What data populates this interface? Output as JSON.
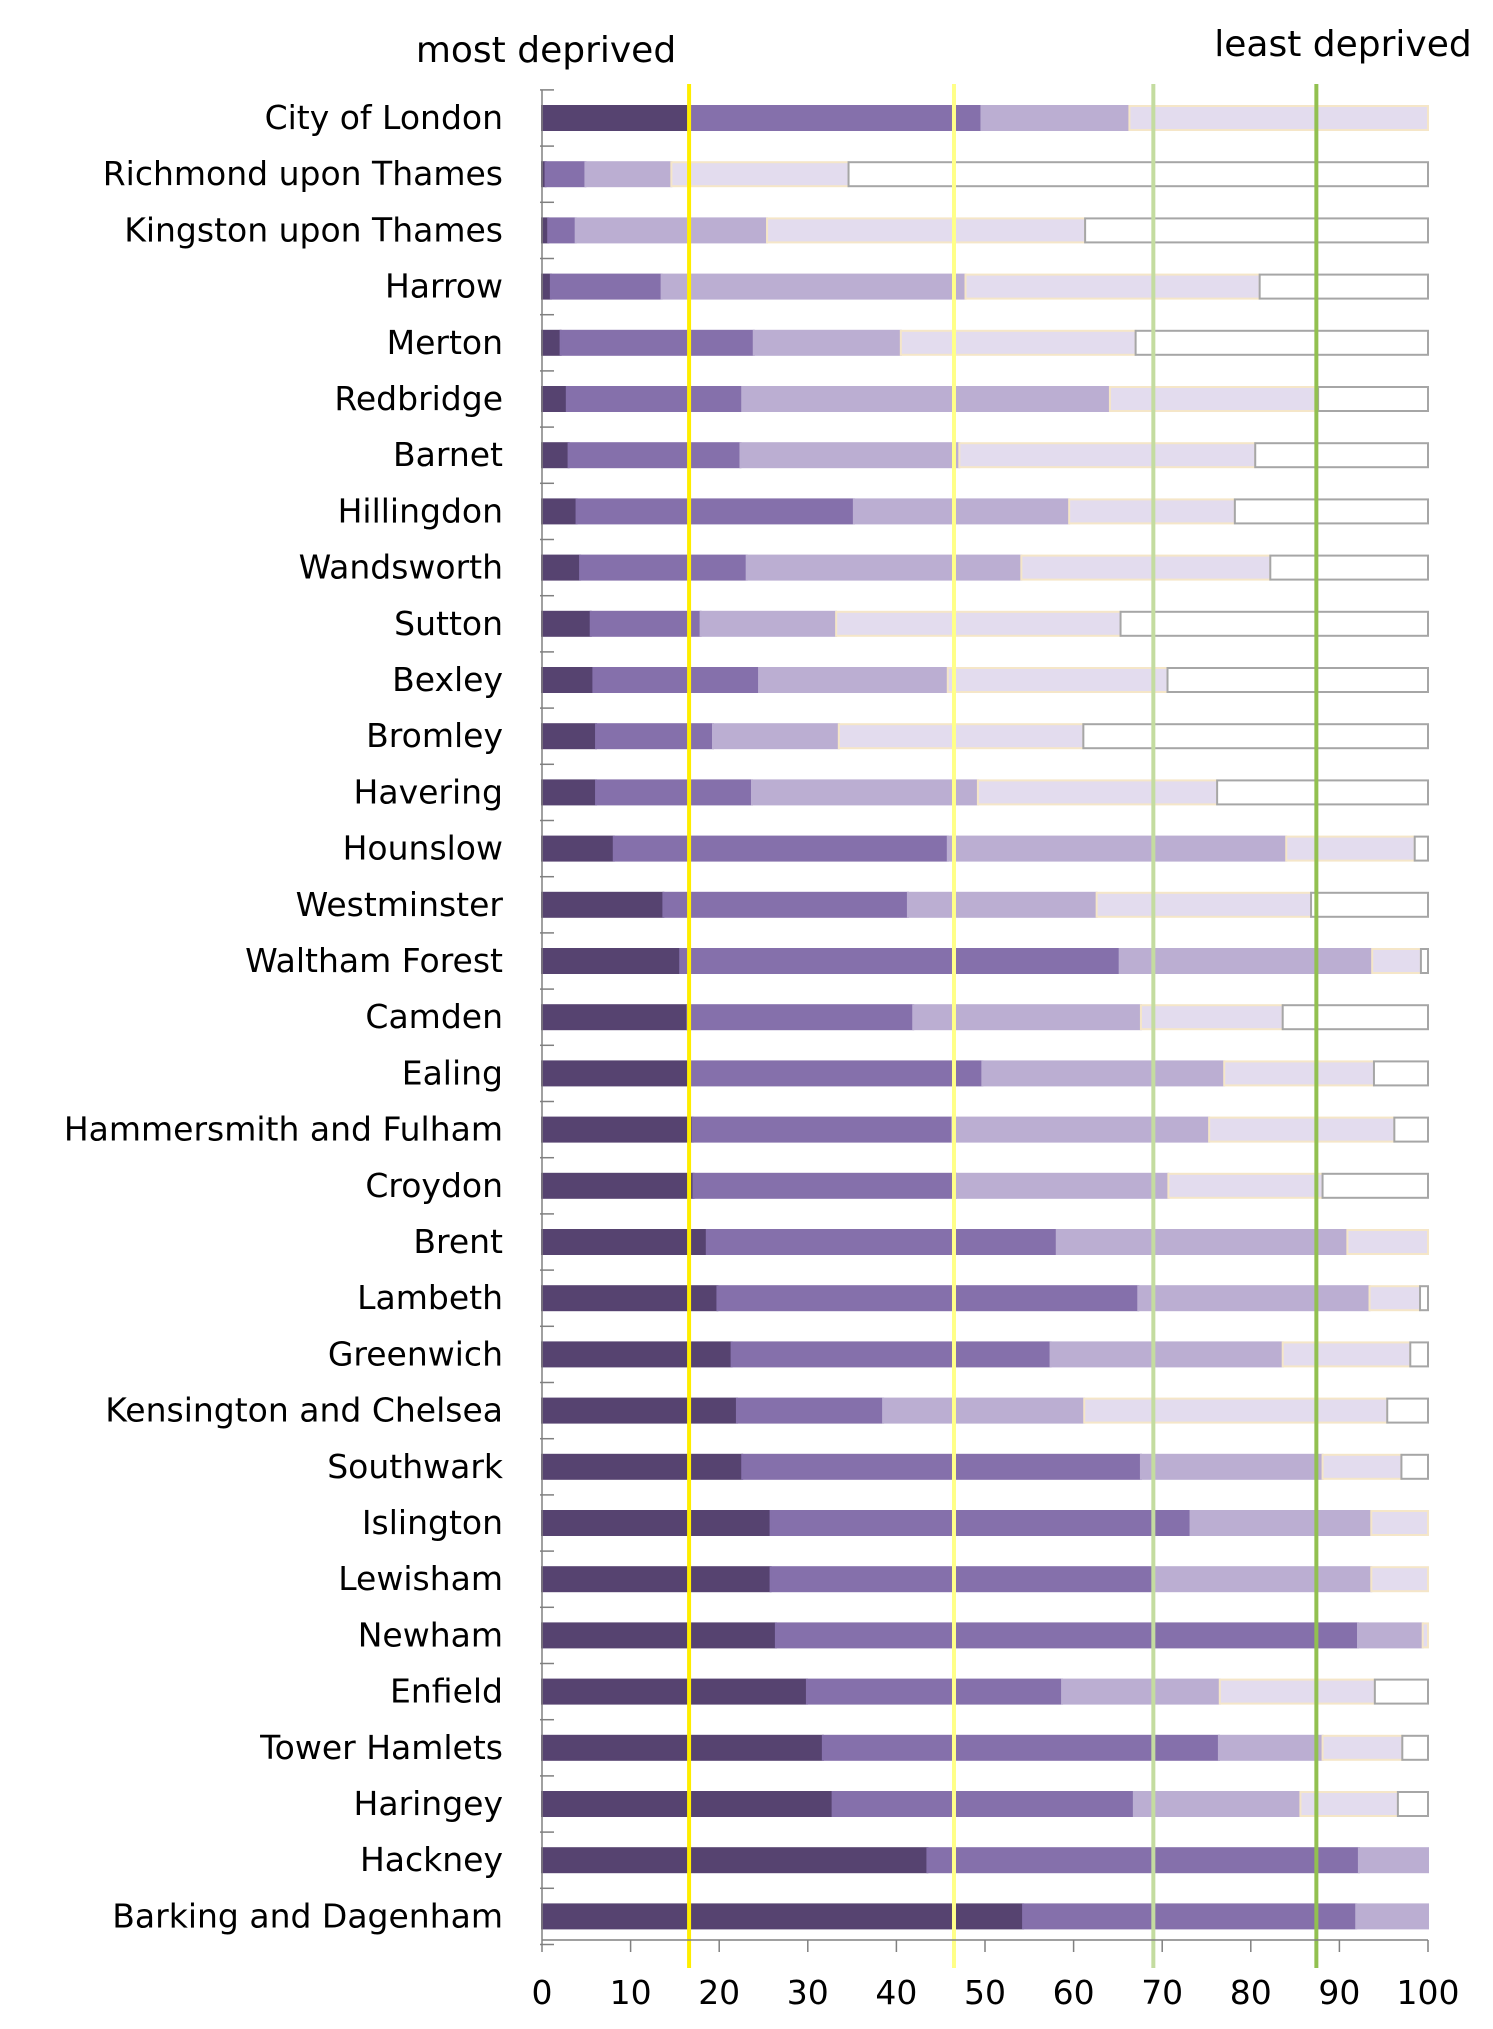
{
  "chart_data": {
    "type": "bar",
    "orientation": "horizontal",
    "stacked": true,
    "header_left": "most deprived",
    "header_right": "least deprived",
    "xlim": [
      0,
      100
    ],
    "xticks": [
      "0",
      "10",
      "20",
      "30",
      "40",
      "50",
      "60",
      "70",
      "80",
      "90",
      "100"
    ],
    "grid": false,
    "categories": [
      "City of London",
      "Richmond upon Thames",
      "Kingston upon Thames",
      "Harrow",
      "Merton",
      "Redbridge",
      "Barnet",
      "Hillingdon",
      "Wandsworth",
      "Sutton",
      "Bexley",
      "Bromley",
      "Havering",
      "Hounslow",
      "Westminster",
      "Waltham Forest",
      "Camden",
      "Ealing",
      "Hammersmith and Fulham",
      "Croydon",
      "Brent",
      "Lambeth",
      "Greenwich",
      "Kensington and Chelsea",
      "Southwark",
      "Islington",
      "Lewisham",
      "Newham",
      "Enfield",
      "Tower Hamlets",
      "Haringey",
      "Hackney",
      "Barking and Dagenham"
    ],
    "segment_colors": [
      "#564370",
      "#8570ab",
      "#bbaed2",
      "#e3dcee",
      "#ffffff"
    ],
    "segment_strokes": [
      "#564370",
      "#8570ab",
      "#bbaed2",
      "#f5e6c8",
      "#a6a6a6"
    ],
    "cumulative": [
      [
        0,
        16.5,
        49.6,
        66.3,
        100
      ],
      [
        0,
        0.4,
        4.9,
        14.6,
        34.6,
        100
      ],
      [
        0,
        0.7,
        3.8,
        25.4,
        61.3,
        100
      ],
      [
        0,
        1.0,
        13.5,
        47.8,
        81.0,
        100
      ],
      [
        0,
        2.1,
        23.9,
        40.5,
        67.0,
        100
      ],
      [
        0,
        2.8,
        22.6,
        64.1,
        87.6,
        100
      ],
      [
        0,
        3.0,
        22.4,
        47.1,
        80.5,
        100
      ],
      [
        0,
        3.9,
        35.2,
        59.5,
        78.2,
        100
      ],
      [
        0,
        4.3,
        23.1,
        54.1,
        82.2,
        100
      ],
      [
        0,
        5.5,
        17.9,
        33.2,
        65.3,
        100
      ],
      [
        0,
        5.8,
        24.5,
        45.8,
        70.6,
        100
      ],
      [
        0,
        6.1,
        19.3,
        33.5,
        61.1,
        100
      ],
      [
        0,
        6.1,
        23.7,
        49.2,
        76.2,
        100
      ],
      [
        0,
        8.1,
        45.8,
        84.0,
        98.5,
        100
      ],
      [
        0,
        13.7,
        41.3,
        62.6,
        86.8,
        100
      ],
      [
        0,
        15.6,
        65.2,
        93.7,
        99.2,
        100
      ],
      [
        0,
        16.4,
        41.9,
        67.6,
        83.6,
        100
      ],
      [
        0,
        16.6,
        49.7,
        77.0,
        93.9,
        100
      ],
      [
        0,
        17.0,
        46.3,
        75.3,
        96.2,
        100
      ],
      [
        0,
        17.1,
        46.7,
        70.7,
        88.1,
        100
      ],
      [
        0,
        18.6,
        58.1,
        90.9,
        100
      ],
      [
        0,
        19.8,
        67.3,
        93.4,
        99.1,
        100
      ],
      [
        0,
        21.4,
        57.4,
        83.6,
        98.0,
        100
      ],
      [
        0,
        22.0,
        38.5,
        61.2,
        95.4,
        100
      ],
      [
        0,
        22.6,
        67.6,
        88.1,
        97.0,
        100
      ],
      [
        0,
        25.8,
        73.2,
        93.6,
        100
      ],
      [
        0,
        25.8,
        69.1,
        93.6,
        100
      ],
      [
        0,
        26.4,
        92.1,
        99.4,
        100
      ],
      [
        0,
        29.9,
        58.7,
        76.5,
        94.0,
        100
      ],
      [
        0,
        31.7,
        76.4,
        88.1,
        97.1,
        100
      ],
      [
        0,
        32.8,
        66.8,
        85.6,
        96.6,
        100
      ],
      [
        0,
        43.5,
        92.2,
        100
      ],
      [
        0,
        54.3,
        91.9,
        100
      ]
    ],
    "reference_lines": [
      {
        "x": 16.6,
        "color": "#ffee00"
      },
      {
        "x": 46.5,
        "color": "#ffff88"
      },
      {
        "x": 69.0,
        "color": "#c4dca0"
      },
      {
        "x": 87.4,
        "color": "#92c050"
      }
    ]
  }
}
